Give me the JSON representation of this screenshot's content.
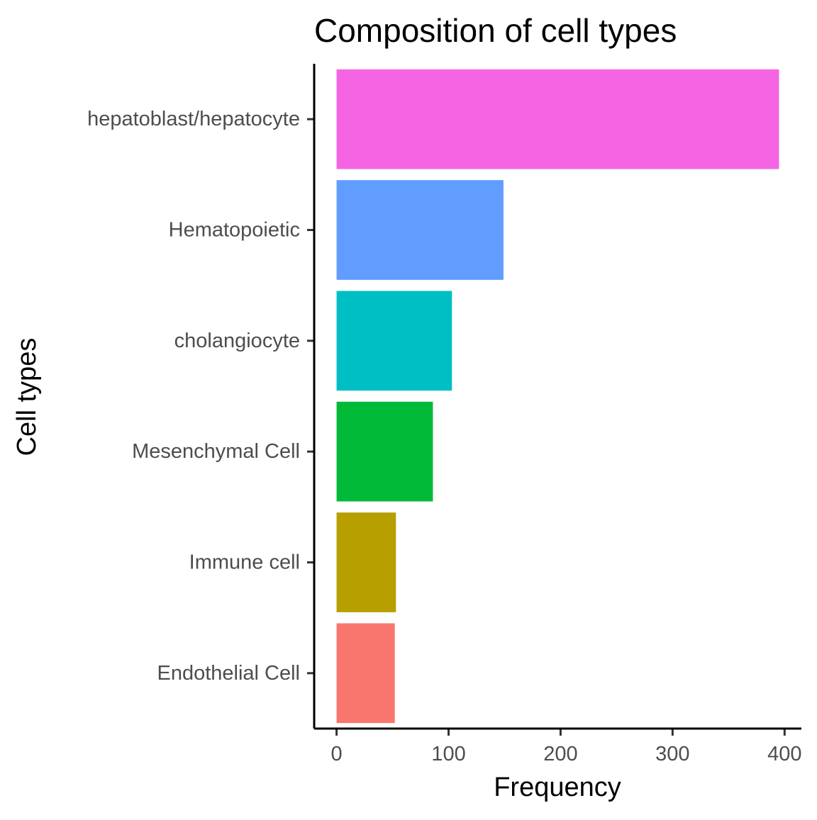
{
  "chart_data": {
    "type": "bar",
    "orientation": "horizontal",
    "title": "Composition of cell types",
    "xlabel": "Frequency",
    "ylabel": "Cell types",
    "categories": [
      "Endothelial Cell",
      "Immune cell",
      "Mesenchymal Cell",
      "cholangiocyte",
      "Hematopoietic",
      "hepatoblast/hepatocyte"
    ],
    "values": [
      52,
      53,
      86,
      103,
      149,
      395
    ],
    "colors": [
      "#F8766D",
      "#B79F00",
      "#00BA38",
      "#00BFC4",
      "#619CFF",
      "#F564E3"
    ],
    "xlim": [
      -20,
      415
    ],
    "xticks": [
      0,
      100,
      200,
      300,
      400
    ],
    "grid": false,
    "legend": "none"
  }
}
